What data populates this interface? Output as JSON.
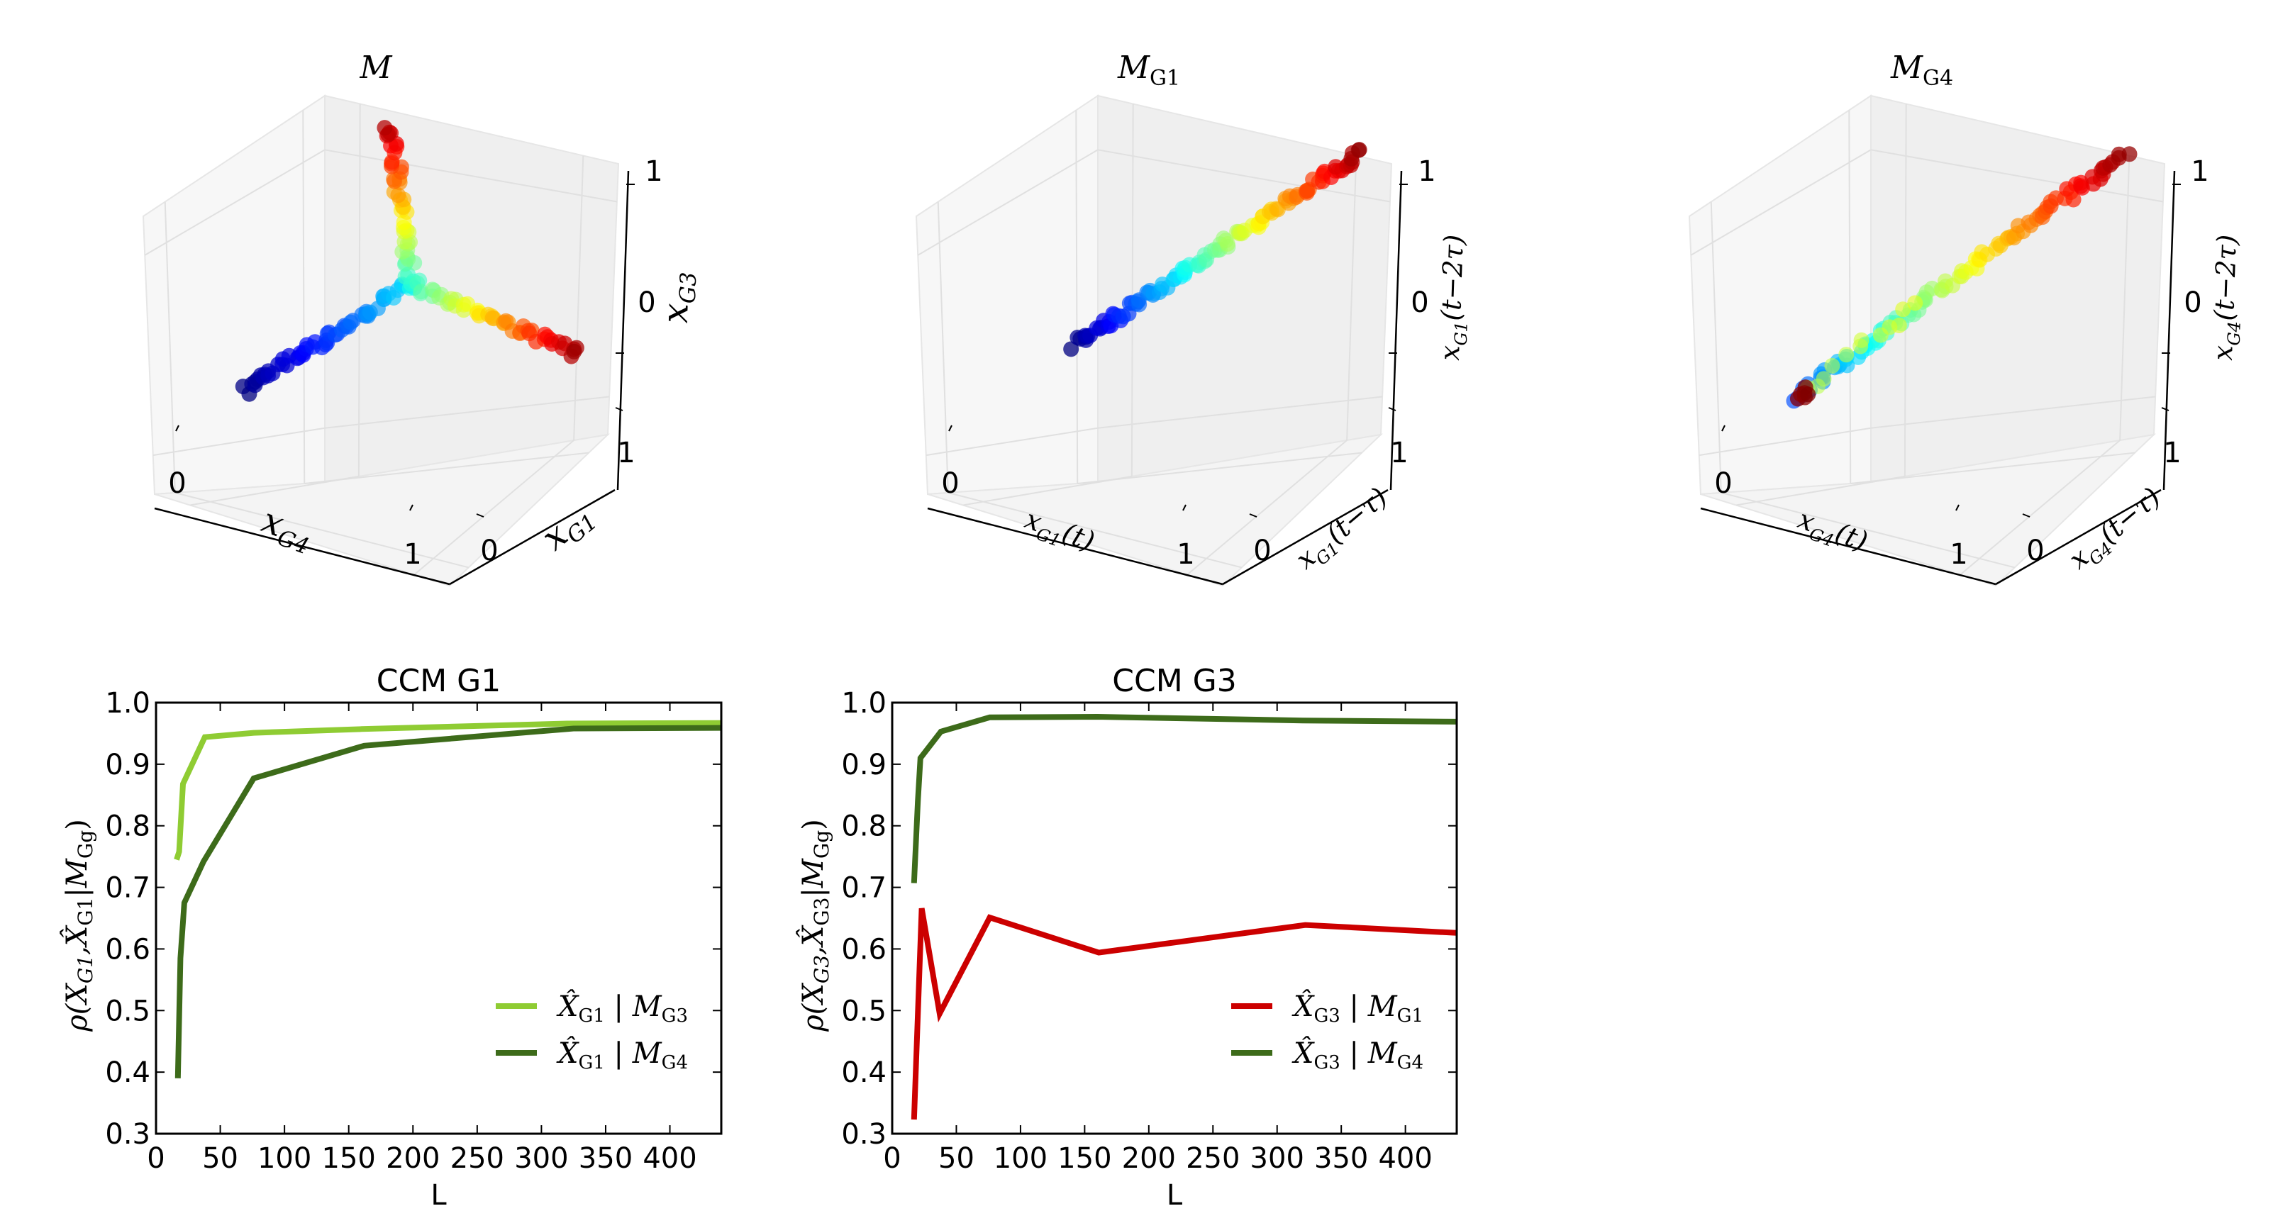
{
  "figure": {
    "panels_3d": [
      {
        "id": "M",
        "title": "M",
        "title_sub": "",
        "x_label": "x",
        "x_sub": "G4",
        "x_suffix": "",
        "y_label": "x",
        "y_sub": "G1",
        "y_suffix": "",
        "z_label": "x",
        "z_sub": "G3",
        "z_suffix": "",
        "ticks": {
          "x": [
            "0",
            "1"
          ],
          "y": [
            "0",
            "1"
          ],
          "z": [
            "0",
            "1"
          ]
        },
        "colormap": "jet",
        "trajectory_description": "Three arms meeting near the origin: blue arm along x_G4, red cluster at high x_G1, red cluster at high x_G3"
      },
      {
        "id": "MG1",
        "title": "M",
        "title_sub": "G1",
        "x_label": "x",
        "x_sub": "G1",
        "x_suffix": "(t)",
        "y_label": "x",
        "y_sub": "G1",
        "y_suffix": "(t−τ)",
        "z_label": "x",
        "z_sub": "G1",
        "z_suffix": "(t−2τ)",
        "ticks": {
          "x": [
            "0",
            "1"
          ],
          "y": [
            "0",
            "1"
          ],
          "z": [
            "0",
            "1"
          ]
        },
        "colormap": "jet",
        "trajectory_description": "Near-diagonal line from blue (low) to red (high)"
      },
      {
        "id": "MG4",
        "title": "M",
        "title_sub": "G4",
        "x_label": "x",
        "x_sub": "G4",
        "x_suffix": "(t)",
        "y_label": "x",
        "y_sub": "G4",
        "y_suffix": "(t−τ)",
        "z_label": "x",
        "z_sub": "G4",
        "z_suffix": "(t−2τ)",
        "ticks": {
          "x": [
            "0",
            "1"
          ],
          "y": [
            "0",
            "1"
          ],
          "z": [
            "0",
            "1"
          ]
        },
        "colormap": "jet",
        "trajectory_description": "Diagonal line from blue/red cluster at low end to dark-red cluster at high end"
      }
    ]
  },
  "chart_data": [
    {
      "type": "line",
      "title": "CCM G1",
      "xlabel": "L",
      "ylabel": "ρ(X_G1, X̂_G1 | M_Gg)",
      "ylabel_parts": {
        "rho": "ρ(",
        "a": "X",
        "a_sub": "G1",
        "comma": ",",
        "b": "X̂",
        "b_sub": "G1",
        "bar": "|",
        "c": "M",
        "c_sub": "Gg",
        "close": ")"
      },
      "xlim": [
        0,
        440
      ],
      "ylim": [
        0.3,
        1.0
      ],
      "xticks": [
        "0",
        "50",
        "100",
        "150",
        "200",
        "250",
        "300",
        "350",
        "400"
      ],
      "xtick_values": [
        0,
        50,
        100,
        150,
        200,
        250,
        300,
        350,
        400
      ],
      "yticks": [
        "0.3",
        "0.4",
        "0.5",
        "0.6",
        "0.7",
        "0.8",
        "0.9",
        "1.0"
      ],
      "ytick_values": [
        0.3,
        0.4,
        0.5,
        0.6,
        0.7,
        0.8,
        0.9,
        1.0
      ],
      "grid": false,
      "legend_position": "lower-right",
      "series": [
        {
          "name": "X̂_G1 | M_G3",
          "legend": {
            "a": "X̂",
            "a_sub": "G1",
            "bar": "|",
            "b": "M",
            "b_sub": "G3"
          },
          "color": "#8fcc33",
          "x": [
            16,
            18,
            21,
            38,
            76,
            160,
            320,
            440
          ],
          "y": [
            0.745,
            0.758,
            0.868,
            0.944,
            0.951,
            0.957,
            0.966,
            0.967
          ]
        },
        {
          "name": "X̂_G1 | M_G4",
          "legend": {
            "a": "X̂",
            "a_sub": "G1",
            "bar": "|",
            "b": "M",
            "b_sub": "G4"
          },
          "color": "#3d6b1a",
          "x": [
            17,
            19,
            22,
            37,
            76,
            162,
            325,
            440
          ],
          "y": [
            0.39,
            0.585,
            0.675,
            0.742,
            0.877,
            0.93,
            0.958,
            0.959
          ]
        }
      ]
    },
    {
      "type": "line",
      "title": "CCM G3",
      "xlabel": "L",
      "ylabel": "ρ(X_G3, X̂_G3 | M_Gg)",
      "ylabel_parts": {
        "rho": "ρ(",
        "a": "X",
        "a_sub": "G3",
        "comma": ",",
        "b": "X̂",
        "b_sub": "G3",
        "bar": "|",
        "c": "M",
        "c_sub": "Gg",
        "close": ")"
      },
      "xlim": [
        0,
        440
      ],
      "ylim": [
        0.3,
        1.0
      ],
      "xticks": [
        "0",
        "50",
        "100",
        "150",
        "200",
        "250",
        "300",
        "350",
        "400"
      ],
      "xtick_values": [
        0,
        50,
        100,
        150,
        200,
        250,
        300,
        350,
        400
      ],
      "yticks": [
        "0.3",
        "0.4",
        "0.5",
        "0.6",
        "0.7",
        "0.8",
        "0.9",
        "1.0"
      ],
      "ytick_values": [
        0.3,
        0.4,
        0.5,
        0.6,
        0.7,
        0.8,
        0.9,
        1.0
      ],
      "grid": false,
      "legend_position": "lower-right",
      "series": [
        {
          "name": "X̂_G3 | M_G1",
          "legend": {
            "a": "X̂",
            "a_sub": "G3",
            "bar": "|",
            "b": "M",
            "b_sub": "G1"
          },
          "color": "#cc0000",
          "x": [
            17,
            23,
            37,
            76,
            161,
            322,
            440
          ],
          "y": [
            0.323,
            0.666,
            0.495,
            0.651,
            0.594,
            0.639,
            0.626
          ]
        },
        {
          "name": "X̂_G3 | M_G4",
          "legend": {
            "a": "X̂",
            "a_sub": "G3",
            "bar": "|",
            "b": "M",
            "b_sub": "G4"
          },
          "color": "#3d6b1a",
          "x": [
            17,
            20,
            22,
            38,
            76,
            160,
            320,
            440
          ],
          "y": [
            0.707,
            0.84,
            0.91,
            0.953,
            0.976,
            0.977,
            0.971,
            0.969
          ]
        }
      ]
    }
  ]
}
